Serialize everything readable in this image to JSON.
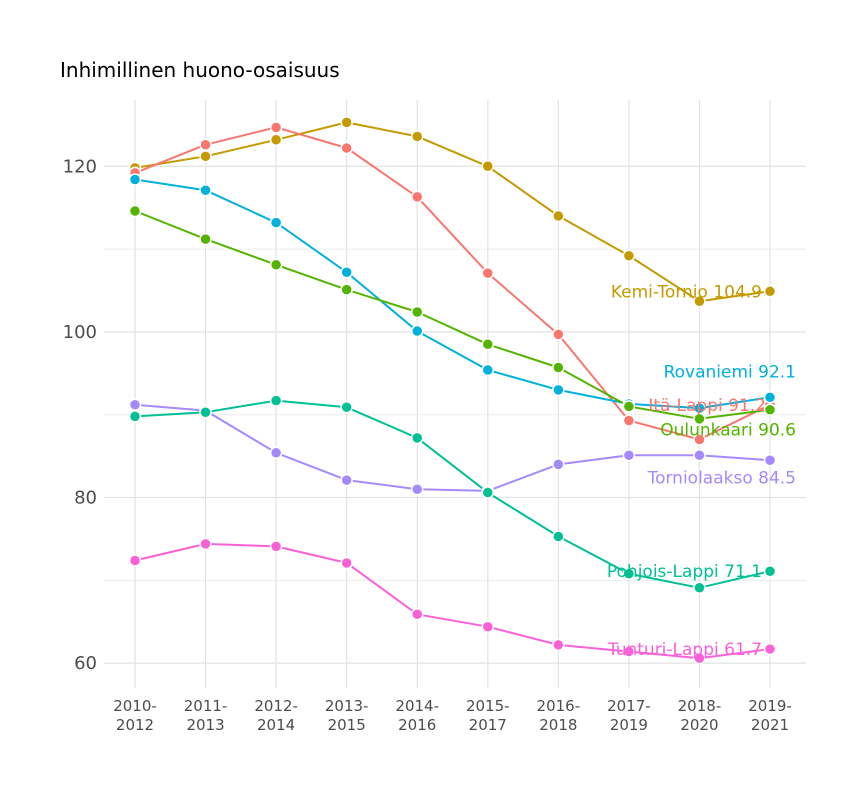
{
  "chart_data": {
    "type": "line",
    "title": "Inhimillinen huono-osaisuus",
    "xlabel": "",
    "ylabel": "",
    "ylim": [
      57,
      128
    ],
    "yticks": [
      60,
      80,
      100,
      120
    ],
    "grid": true,
    "legend": "direct labels at line ends",
    "x": [
      [
        "2010-",
        "2012"
      ],
      [
        "2011-",
        "2013"
      ],
      [
        "2012-",
        "2014"
      ],
      [
        "2013-",
        "2015"
      ],
      [
        "2014-",
        "2016"
      ],
      [
        "2015-",
        "2017"
      ],
      [
        "2016-",
        "2018"
      ],
      [
        "2017-",
        "2019"
      ],
      [
        "2018-",
        "2020"
      ],
      [
        "2019-",
        "2021"
      ]
    ],
    "series": [
      {
        "name": "Kemi-Tornio",
        "label": "Kemi-Tornio 104.9",
        "color": "#C49A00",
        "values": [
          119.8,
          121.2,
          123.2,
          125.3,
          123.6,
          120.0,
          114.0,
          109.2,
          103.7,
          104.9
        ]
      },
      {
        "name": "Itä-Lappi",
        "label": "Itä-Lappi 91.2",
        "color": "#F8766D",
        "values": [
          119.2,
          122.6,
          124.7,
          122.2,
          116.3,
          107.1,
          99.7,
          89.3,
          87.0,
          91.2
        ]
      },
      {
        "name": "Rovaniemi",
        "label": "Rovaniemi 92.1",
        "color": "#00B0DD",
        "values": [
          118.4,
          117.1,
          113.2,
          107.2,
          100.1,
          95.4,
          93.0,
          91.3,
          90.8,
          92.1
        ]
      },
      {
        "name": "Oulunkaari",
        "label": "Oulunkaari 90.6",
        "color": "#53B400",
        "values": [
          114.6,
          111.2,
          108.1,
          105.1,
          102.4,
          98.5,
          95.7,
          91.0,
          89.5,
          90.6
        ]
      },
      {
        "name": "Torniolaakso",
        "label": "Torniolaakso 84.5",
        "color": "#A58AFF",
        "values": [
          91.2,
          90.5,
          85.4,
          82.1,
          81.0,
          80.8,
          84.0,
          85.1,
          85.1,
          84.5
        ]
      },
      {
        "name": "Pohjois-Lappi",
        "label": "Pohjois-Lappi 71.1",
        "color": "#00C094",
        "values": [
          89.8,
          90.3,
          91.7,
          90.9,
          87.2,
          80.6,
          75.3,
          70.8,
          69.1,
          71.1
        ]
      },
      {
        "name": "Tunturi-Lappi",
        "label": "Tunturi-Lappi 61.7",
        "color": "#FB61D7",
        "values": [
          72.4,
          74.4,
          74.1,
          72.1,
          65.9,
          64.4,
          62.2,
          61.4,
          60.6,
          61.7
        ]
      }
    ]
  }
}
